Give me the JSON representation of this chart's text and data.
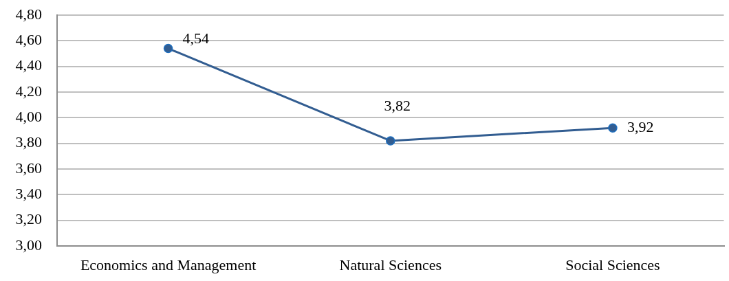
{
  "chart_data": {
    "type": "line",
    "categories": [
      "Economics and Management",
      "Natural Sciences",
      "Social Sciences"
    ],
    "series": [
      {
        "color": "#325d91",
        "values": [
          4.54,
          3.82,
          3.92
        ],
        "value_labels": [
          "4,54",
          "3,82",
          "3,92"
        ]
      }
    ],
    "ylim": [
      3,
      4.8
    ],
    "yticks": [
      {
        "value": 3,
        "label": "3,00"
      },
      {
        "value": 3.2,
        "label": "3,20"
      },
      {
        "value": 3.4,
        "label": "3,40"
      },
      {
        "value": 3.6,
        "label": "3,60"
      },
      {
        "value": 3.8,
        "label": "3,80"
      },
      {
        "value": 4,
        "label": "4,00"
      },
      {
        "value": 4.2,
        "label": "4,20"
      },
      {
        "value": 4.4,
        "label": "4,40"
      },
      {
        "value": 4.6,
        "label": "4,60"
      },
      {
        "value": 4.8,
        "label": "4,80"
      }
    ],
    "grid": "y",
    "legend": false,
    "marker": "circle",
    "line_style": "solid"
  }
}
